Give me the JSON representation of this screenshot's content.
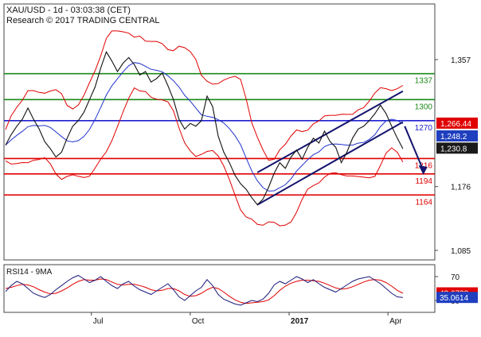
{
  "header": {
    "symbol_line": "XAU/USD - 1d - 03:03:38 (CET)",
    "research_line": "Research © 2017 TRADING CENTRAL"
  },
  "colors": {
    "price": "#111111",
    "bollinger": "#e00000",
    "ma_blue": "#2233cc",
    "support_red": "#e00000",
    "resistance_green": "#1a8a1a",
    "pivot_blue": "#1f1fd0",
    "channel_navy": "#14146e",
    "arrow_navy": "#14146e",
    "rsi_line": "#1a1a7a",
    "rsi_ma": "#e00000",
    "badge_red": "#e00000",
    "badge_blue": "#1f3fbf",
    "badge_dark": "#1a1a1a",
    "badge_rsi_blue": "#1f3fbf"
  },
  "chart_data": [
    {
      "type": "line",
      "title": "XAU/USD - 1d - 03:03:38 (CET)",
      "subtitle": "Research © 2017 TRADING CENTRAL",
      "x_ticks": [
        "Jul",
        "Oct",
        "2017",
        "Apr"
      ],
      "y_ticks": [
        1357,
        1176,
        1085
      ],
      "y_tick_labels": [
        "1,357",
        "1,176",
        "1,085"
      ],
      "ylim": [
        1040,
        1420
      ],
      "levels": [
        {
          "label": "1337",
          "value": 1337,
          "role": "resistance",
          "color": "#1a8a1a"
        },
        {
          "label": "1300",
          "value": 1300,
          "role": "resistance",
          "color": "#1a8a1a"
        },
        {
          "label": "1270",
          "value": 1270,
          "role": "pivot",
          "color": "#1f1fd0"
        },
        {
          "label": "1216",
          "value": 1216,
          "role": "support",
          "color": "#e00000"
        },
        {
          "label": "1194",
          "value": 1194,
          "role": "support",
          "color": "#e00000"
        },
        {
          "label": "1164",
          "value": 1164,
          "role": "support",
          "color": "#e00000"
        }
      ],
      "badges": [
        {
          "label": "1,266.44",
          "value": 1266.44,
          "color": "#e00000"
        },
        {
          "label": "1,248.2",
          "value": 1248.2,
          "color": "#1f3fbf"
        },
        {
          "label": "1,230.8",
          "value": 1230.8,
          "color": "#1a1a1a"
        }
      ],
      "price_series": [
        {
          "x": 0,
          "y": 1235
        },
        {
          "x": 3,
          "y": 1250
        },
        {
          "x": 6,
          "y": 1262
        },
        {
          "x": 9,
          "y": 1272
        },
        {
          "x": 12,
          "y": 1288
        },
        {
          "x": 15,
          "y": 1272
        },
        {
          "x": 18,
          "y": 1258
        },
        {
          "x": 21,
          "y": 1240
        },
        {
          "x": 24,
          "y": 1230
        },
        {
          "x": 27,
          "y": 1218
        },
        {
          "x": 30,
          "y": 1225
        },
        {
          "x": 33,
          "y": 1245
        },
        {
          "x": 36,
          "y": 1262
        },
        {
          "x": 39,
          "y": 1270
        },
        {
          "x": 42,
          "y": 1282
        },
        {
          "x": 45,
          "y": 1300
        },
        {
          "x": 48,
          "y": 1318
        },
        {
          "x": 51,
          "y": 1345
        },
        {
          "x": 54,
          "y": 1368
        },
        {
          "x": 57,
          "y": 1355
        },
        {
          "x": 60,
          "y": 1340
        },
        {
          "x": 63,
          "y": 1352
        },
        {
          "x": 66,
          "y": 1360
        },
        {
          "x": 69,
          "y": 1350
        },
        {
          "x": 72,
          "y": 1335
        },
        {
          "x": 75,
          "y": 1340
        },
        {
          "x": 78,
          "y": 1325
        },
        {
          "x": 81,
          "y": 1330
        },
        {
          "x": 84,
          "y": 1338
        },
        {
          "x": 87,
          "y": 1320
        },
        {
          "x": 90,
          "y": 1300
        },
        {
          "x": 93,
          "y": 1272
        },
        {
          "x": 96,
          "y": 1258
        },
        {
          "x": 99,
          "y": 1266
        },
        {
          "x": 102,
          "y": 1262
        },
        {
          "x": 105,
          "y": 1270
        },
        {
          "x": 108,
          "y": 1305
        },
        {
          "x": 111,
          "y": 1290
        },
        {
          "x": 114,
          "y": 1248
        },
        {
          "x": 117,
          "y": 1225
        },
        {
          "x": 120,
          "y": 1210
        },
        {
          "x": 123,
          "y": 1192
        },
        {
          "x": 126,
          "y": 1180
        },
        {
          "x": 129,
          "y": 1172
        },
        {
          "x": 132,
          "y": 1160
        },
        {
          "x": 135,
          "y": 1150
        },
        {
          "x": 138,
          "y": 1158
        },
        {
          "x": 141,
          "y": 1175
        },
        {
          "x": 144,
          "y": 1195
        },
        {
          "x": 147,
          "y": 1210
        },
        {
          "x": 150,
          "y": 1202
        },
        {
          "x": 153,
          "y": 1218
        },
        {
          "x": 156,
          "y": 1228
        },
        {
          "x": 159,
          "y": 1215
        },
        {
          "x": 162,
          "y": 1232
        },
        {
          "x": 165,
          "y": 1245
        },
        {
          "x": 168,
          "y": 1238
        },
        {
          "x": 171,
          "y": 1255
        },
        {
          "x": 174,
          "y": 1240
        },
        {
          "x": 177,
          "y": 1232
        },
        {
          "x": 180,
          "y": 1210
        },
        {
          "x": 183,
          "y": 1225
        },
        {
          "x": 186,
          "y": 1245
        },
        {
          "x": 189,
          "y": 1258
        },
        {
          "x": 192,
          "y": 1262
        },
        {
          "x": 195,
          "y": 1270
        },
        {
          "x": 198,
          "y": 1280
        },
        {
          "x": 201,
          "y": 1292
        },
        {
          "x": 204,
          "y": 1280
        },
        {
          "x": 207,
          "y": 1262
        },
        {
          "x": 210,
          "y": 1245
        },
        {
          "x": 213,
          "y": 1230
        }
      ],
      "rsi": {
        "label": "RSI14 - 9MA",
        "y_ticks": [
          70,
          30
        ],
        "badges": [
          {
            "label": "42.6738",
            "value": 42.6738,
            "color": "#e00000"
          },
          {
            "label": "35.0614",
            "value": 35.0614,
            "color": "#1f3fbf"
          }
        ],
        "rsi_values": [
          45,
          55,
          62,
          58,
          50,
          42,
          38,
          35,
          40,
          48,
          55,
          62,
          68,
          72,
          66,
          60,
          64,
          70,
          62,
          55,
          50,
          58,
          62,
          54,
          48,
          44,
          40,
          46,
          52,
          58,
          48,
          36,
          30,
          38,
          46,
          52,
          65,
          55,
          40,
          32,
          28,
          24,
          22,
          26,
          30,
          28,
          32,
          42,
          56,
          62,
          58,
          64,
          70,
          66,
          60,
          65,
          58,
          52,
          48,
          44,
          50,
          56,
          62,
          66,
          68,
          70,
          64,
          58,
          50,
          42,
          36,
          35
        ],
        "ma_values": [
          50,
          52,
          55,
          57,
          56,
          53,
          48,
          44,
          41,
          42,
          46,
          51,
          57,
          62,
          65,
          64,
          64,
          66,
          65,
          61,
          57,
          56,
          57,
          57,
          55,
          52,
          48,
          46,
          47,
          50,
          50,
          46,
          40,
          37,
          38,
          42,
          48,
          52,
          50,
          44,
          37,
          31,
          27,
          25,
          26,
          27,
          28,
          31,
          38,
          47,
          54,
          59,
          62,
          64,
          64,
          63,
          62,
          59,
          55,
          51,
          49,
          50,
          53,
          57,
          61,
          64,
          65,
          64,
          60,
          54,
          47,
          42
        ]
      }
    }
  ]
}
